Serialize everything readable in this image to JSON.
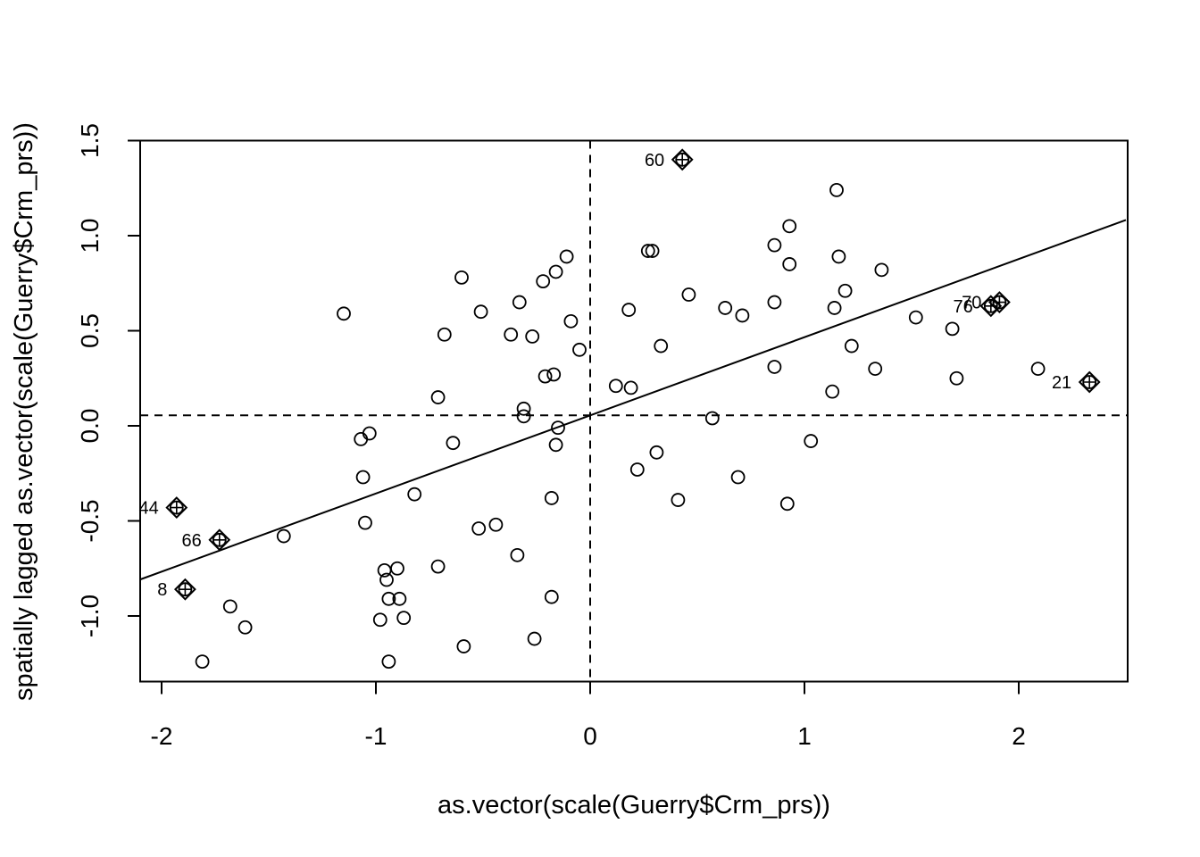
{
  "chart_data": {
    "type": "scatter",
    "title": "",
    "xlabel": "as.vector(scale(Guerry$Crm_prs))",
    "ylabel": "spatially lagged as.vector(scale(Guerry$Crm_prs))",
    "xlim": [
      -2.1,
      2.5
    ],
    "ylim": [
      -1.35,
      1.5
    ],
    "x_ticks": [
      -2,
      -1,
      0,
      1,
      2
    ],
    "y_ticks": [
      -1.0,
      -0.5,
      0.0,
      0.5,
      1.0,
      1.5
    ],
    "x_tick_labels": [
      "-2",
      "-1",
      "0",
      "1",
      "2"
    ],
    "y_tick_labels": [
      "-1.0",
      "-0.5",
      "0.0",
      "0.5",
      "1.0",
      "1.5"
    ],
    "grid": false,
    "reference_lines": {
      "x_mean": 0.0,
      "y_mean": 0.055
    },
    "regression_line": {
      "intercept": 0.055,
      "slope": 0.411
    },
    "points": [
      {
        "x": -1.81,
        "y": -1.24
      },
      {
        "x": -1.68,
        "y": -0.95
      },
      {
        "x": -1.61,
        "y": -1.06
      },
      {
        "x": -1.43,
        "y": -0.58
      },
      {
        "x": -1.15,
        "y": 0.59
      },
      {
        "x": -1.07,
        "y": -0.07
      },
      {
        "x": -1.06,
        "y": -0.27
      },
      {
        "x": -1.05,
        "y": -0.51
      },
      {
        "x": -1.03,
        "y": -0.04
      },
      {
        "x": -0.98,
        "y": -1.02
      },
      {
        "x": -0.96,
        "y": -0.76
      },
      {
        "x": -0.95,
        "y": -0.81
      },
      {
        "x": -0.94,
        "y": -0.91
      },
      {
        "x": -0.94,
        "y": -1.24
      },
      {
        "x": -0.9,
        "y": -0.75
      },
      {
        "x": -0.89,
        "y": -0.91
      },
      {
        "x": -0.87,
        "y": -1.01
      },
      {
        "x": -0.82,
        "y": -0.36
      },
      {
        "x": -0.71,
        "y": 0.15
      },
      {
        "x": -0.71,
        "y": -0.74
      },
      {
        "x": -0.68,
        "y": 0.48
      },
      {
        "x": -0.64,
        "y": -0.09
      },
      {
        "x": -0.6,
        "y": 0.78
      },
      {
        "x": -0.59,
        "y": -1.16
      },
      {
        "x": -0.52,
        "y": -0.54
      },
      {
        "x": -0.51,
        "y": 0.6
      },
      {
        "x": -0.44,
        "y": -0.52
      },
      {
        "x": -0.37,
        "y": 0.48
      },
      {
        "x": -0.34,
        "y": -0.68
      },
      {
        "x": -0.33,
        "y": 0.65
      },
      {
        "x": -0.31,
        "y": 0.09
      },
      {
        "x": -0.31,
        "y": 0.05
      },
      {
        "x": -0.27,
        "y": 0.47
      },
      {
        "x": -0.26,
        "y": -1.12
      },
      {
        "x": -0.22,
        "y": 0.76
      },
      {
        "x": -0.21,
        "y": 0.26
      },
      {
        "x": -0.18,
        "y": -0.38
      },
      {
        "x": -0.18,
        "y": -0.9
      },
      {
        "x": -0.17,
        "y": 0.27
      },
      {
        "x": -0.16,
        "y": 0.81
      },
      {
        "x": -0.16,
        "y": -0.1
      },
      {
        "x": -0.15,
        "y": -0.01
      },
      {
        "x": -0.11,
        "y": 0.89
      },
      {
        "x": -0.09,
        "y": 0.55
      },
      {
        "x": -0.05,
        "y": 0.4
      },
      {
        "x": 0.12,
        "y": 0.21
      },
      {
        "x": 0.18,
        "y": 0.61
      },
      {
        "x": 0.19,
        "y": 0.2
      },
      {
        "x": 0.22,
        "y": -0.23
      },
      {
        "x": 0.27,
        "y": 0.92
      },
      {
        "x": 0.29,
        "y": 0.92
      },
      {
        "x": 0.31,
        "y": -0.14
      },
      {
        "x": 0.33,
        "y": 0.42
      },
      {
        "x": 0.41,
        "y": -0.39
      },
      {
        "x": 0.46,
        "y": 0.69
      },
      {
        "x": 0.57,
        "y": 0.04
      },
      {
        "x": 0.63,
        "y": 0.62
      },
      {
        "x": 0.69,
        "y": -0.27
      },
      {
        "x": 0.71,
        "y": 0.58
      },
      {
        "x": 0.86,
        "y": 0.95
      },
      {
        "x": 0.86,
        "y": 0.65
      },
      {
        "x": 0.86,
        "y": 0.31
      },
      {
        "x": 0.92,
        "y": -0.41
      },
      {
        "x": 0.93,
        "y": 1.05
      },
      {
        "x": 0.93,
        "y": 0.85
      },
      {
        "x": 1.03,
        "y": -0.08
      },
      {
        "x": 1.13,
        "y": 0.18
      },
      {
        "x": 1.14,
        "y": 0.62
      },
      {
        "x": 1.15,
        "y": 1.24
      },
      {
        "x": 1.16,
        "y": 0.89
      },
      {
        "x": 1.19,
        "y": 0.71
      },
      {
        "x": 1.22,
        "y": 0.42
      },
      {
        "x": 1.33,
        "y": 0.3
      },
      {
        "x": 1.36,
        "y": 0.82
      },
      {
        "x": 1.52,
        "y": 0.57
      },
      {
        "x": 1.69,
        "y": 0.51
      },
      {
        "x": 1.71,
        "y": 0.25
      },
      {
        "x": 2.09,
        "y": 0.3
      }
    ],
    "influential_points": [
      {
        "label": "60",
        "x": 0.43,
        "y": 1.4
      },
      {
        "label": "44",
        "x": -1.93,
        "y": -0.43
      },
      {
        "label": "66",
        "x": -1.73,
        "y": -0.6
      },
      {
        "label": "8",
        "x": -1.89,
        "y": -0.86
      },
      {
        "label": "70",
        "x": 1.91,
        "y": 0.65
      },
      {
        "label": "76",
        "x": 1.87,
        "y": 0.63
      },
      {
        "label": "21",
        "x": 2.33,
        "y": 0.23
      }
    ]
  }
}
